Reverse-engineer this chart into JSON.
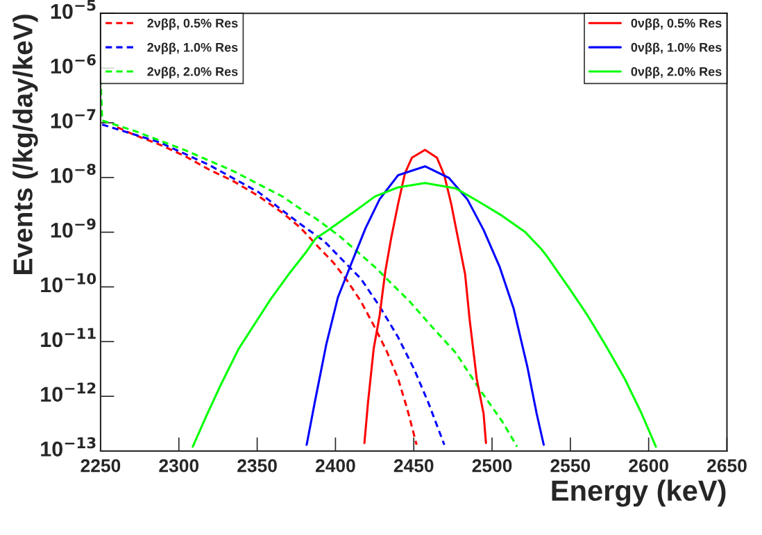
{
  "chart_data": {
    "type": "line",
    "xlabel": "Energy (keV)",
    "ylabel": "Events (/kg/day/keV)",
    "log": "y",
    "legend": "top",
    "grid": false,
    "marker": "none",
    "xlim": [
      2250,
      2650
    ],
    "xticks": [
      2250,
      2300,
      2350,
      2400,
      2450,
      2500,
      2550,
      2600,
      2650
    ],
    "ylim": [
      1e-13,
      1e-05
    ],
    "yticks": [
      {
        "value": 1e-13,
        "label": "10$^{−13}$"
      },
      {
        "value": 1e-12,
        "label": "10$^{−12}$"
      },
      {
        "value": 1e-11,
        "label": "10$^{−11}$"
      },
      {
        "value": 1e-10,
        "label": "10$^{−10}$"
      },
      {
        "value": 1e-09,
        "label": "10$^{−9}$"
      },
      {
        "value": 1e-08,
        "label": "10$^{−8}$"
      },
      {
        "value": 1e-07,
        "label": "10$^{−7}$"
      },
      {
        "value": 1e-06,
        "label": "10$^{−6}$"
      },
      {
        "value": 1e-05,
        "label": "10$^{−5}$"
      }
    ],
    "series": [
      {
        "name": "2νββ, 0.5% Res",
        "color": "#ff0000",
        "line_style": "dashed",
        "x": [
          2260.7,
          2271.7,
          2287.6,
          2303.4,
          2319.2,
          2335,
          2350.8,
          2366.7,
          2377.7,
          2389.8,
          2398.6,
          2407.5,
          2416.3,
          2425.2,
          2432.6,
          2440,
          2445.9,
          2451.8
        ],
        "values": [
          8.3e-08,
          6e-08,
          4e-08,
          2.5e-08,
          1.4e-08,
          8.5e-09,
          4.6e-09,
          2.2e-09,
          1.2e-09,
          5.1e-10,
          2.8e-10,
          1.3e-10,
          5.4e-11,
          1.8e-11,
          6.8e-12,
          2.1e-12,
          5.8e-13,
          1.3e-13
        ]
      },
      {
        "name": "2νββ, 1.0% Res",
        "color": "#0000ff",
        "line_style": "dashed",
        "x": [
          2251,
          2287.6,
          2319.2,
          2350.8,
          2377.7,
          2392.7,
          2404.5,
          2416.3,
          2428.2,
          2440,
          2450.3,
          2459.2,
          2469.5
        ],
        "values": [
          9.3e-08,
          4.4e-08,
          1.7e-08,
          5.4e-09,
          1.4e-09,
          6.9e-10,
          3.1e-10,
          1.4e-10,
          4.4e-11,
          1.2e-11,
          3.1e-12,
          7.8e-13,
          1.3e-13
        ]
      },
      {
        "name": "2νββ, 2.0% Res",
        "color": "#00ff00",
        "line_style": "dashed",
        "x": [
          2250,
          2251,
          2271.7,
          2303.4,
          2335,
          2366.7,
          2380.9,
          2387.2,
          2403.0,
          2425.2,
          2447.4,
          2462.1,
          2476.9,
          2491.6,
          2506.4,
          2516.0
        ],
        "values": [
          6.5e-07,
          1.1e-07,
          7.1e-08,
          3.2e-08,
          1.3e-08,
          4.4e-09,
          2.3e-09,
          1.8e-09,
          8.3e-10,
          2.3e-10,
          5.4e-11,
          1.8e-11,
          6.2e-12,
          1.4e-12,
          3.5e-13,
          1.2e-13
        ]
      },
      {
        "name": "0νββ, 0.5% Res",
        "color": "#ff0000",
        "line_style": "solid",
        "x": [
          2418.5,
          2420.8,
          2424.4,
          2428.2,
          2431.8,
          2435.5,
          2440,
          2444.4,
          2448.8,
          2457.2,
          2464.8,
          2469.5,
          2473.9,
          2478.3,
          2482.8,
          2485.7,
          2490.2,
          2494.6,
          2496.1
        ],
        "values": [
          1.4e-13,
          7.8e-13,
          7.4e-12,
          3e-11,
          1.9e-10,
          7.6e-10,
          3.3e-09,
          1.2e-08,
          2.3e-08,
          3.2e-08,
          2.3e-08,
          1.1e-08,
          3.3e-09,
          7.6e-10,
          1.7e-10,
          2.5e-11,
          2.1e-12,
          4.8e-13,
          1.4e-13
        ]
      },
      {
        "name": "0νββ, 1.0% Res",
        "color": "#0000ff",
        "line_style": "solid",
        "x": [
          2381.6,
          2386.8,
          2394.2,
          2401.6,
          2410.4,
          2419.3,
          2428.2,
          2440,
          2457.2,
          2472.5,
          2484.2,
          2494.6,
          2504.9,
          2513.8,
          2522.6,
          2528.5,
          2533.0
        ],
        "values": [
          1.3e-13,
          7.8e-13,
          9.1e-12,
          6.5e-11,
          2.8e-10,
          1.2e-09,
          4e-09,
          1.1e-08,
          1.6e-08,
          9.8e-09,
          4e-09,
          1.1e-09,
          2.3e-10,
          4e-11,
          3.4e-12,
          4.8e-13,
          1.3e-13
        ]
      },
      {
        "name": "0νββ, 2.0% Res",
        "color": "#00ff00",
        "line_style": "solid",
        "x": [
          2308.9,
          2317.6,
          2327.1,
          2338.2,
          2349.3,
          2358.7,
          2371.4,
          2380.9,
          2387.2,
          2395.6,
          2410.4,
          2425.2,
          2440,
          2457.2,
          2476.9,
          2491.6,
          2506.4,
          2521.2,
          2531.5,
          2534.5,
          2549.2,
          2561.0,
          2572.8,
          2584.7,
          2595.0,
          2604.6
        ],
        "values": [
          1.2e-13,
          4.4e-13,
          1.7e-12,
          7.4e-12,
          2.3e-11,
          6e-11,
          1.9e-10,
          4.2e-10,
          7.6e-10,
          1.1e-09,
          2.2e-09,
          4.5e-09,
          6.6e-09,
          7.9e-09,
          6.3e-09,
          3.6e-09,
          2e-09,
          1e-09,
          4.9e-10,
          3.8e-10,
          9.5e-11,
          3e-11,
          8.3e-12,
          2.1e-12,
          5.2e-13,
          1.2e-13
        ]
      }
    ]
  }
}
